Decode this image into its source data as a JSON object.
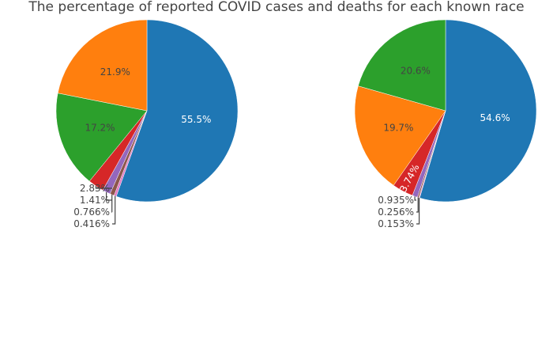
{
  "chart_data": {
    "type": "pie",
    "title": "The percentage of reported COVID cases and deaths for each known race",
    "colors": [
      "#1f77b4",
      "#ff7f0e",
      "#2ca02c",
      "#d62728",
      "#9467bd",
      "#8c564b",
      "#e377c2"
    ],
    "pies": [
      {
        "values": [
          55.5,
          21.9,
          17.2,
          2.83,
          1.41,
          0.766,
          0.416
        ],
        "labels": [
          "55.5%",
          "21.9%",
          "17.2%",
          "2.83%",
          "1.41%",
          "0.766%",
          "0.416%"
        ]
      },
      {
        "values": [
          54.6,
          19.7,
          20.6,
          3.74,
          0.935,
          0.256,
          0.153
        ],
        "labels": [
          "54.6%",
          "19.7%",
          "20.6%",
          "3.74%",
          "0.935%",
          "0.256%",
          "0.153%"
        ]
      }
    ]
  }
}
